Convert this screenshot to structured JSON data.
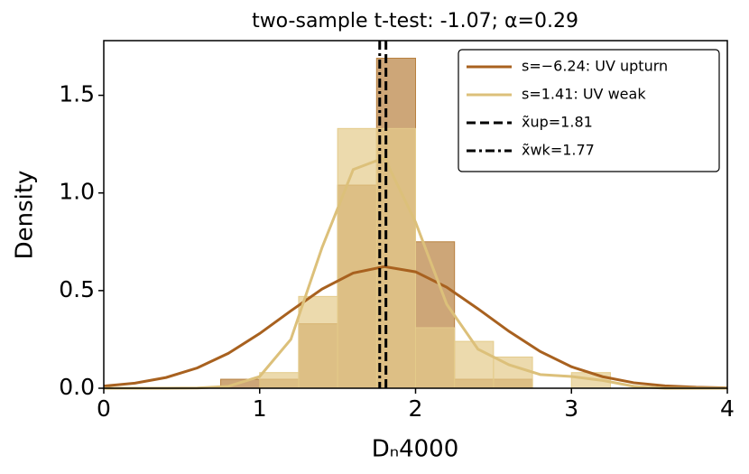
{
  "chart_data": {
    "type": "histogram",
    "title": "two-sample t-test: -1.07; α=0.29",
    "xlabel": "Dₙ4000",
    "ylabel": "Density",
    "xlim": [
      0,
      4
    ],
    "ylim": [
      0,
      1.78
    ],
    "xticks": [
      0,
      1,
      2,
      3,
      4
    ],
    "yticks": [
      {
        "value": 0,
        "label": "0.0"
      },
      0.5,
      {
        "value": 1,
        "label": "1.0"
      },
      1.5
    ],
    "bins": [
      0.75,
      1.0,
      1.25,
      1.5,
      1.75,
      2.0,
      2.25,
      2.5,
      2.75,
      3.0,
      3.25
    ],
    "series": [
      {
        "color": "#b8803f",
        "values": [
          0.046,
          0.046,
          0.33,
          1.04,
          1.69,
          0.75,
          0.046,
          0.046,
          0,
          0
        ]
      },
      {
        "color": "#e4cb8a",
        "values": [
          0,
          0.08,
          0.47,
          1.33,
          1.33,
          0.31,
          0.24,
          0.16,
          0,
          0.08
        ]
      }
    ],
    "curves": [
      {
        "name": "s=−6.24: UV upturn",
        "color": "#a8611f",
        "x": [
          0,
          0.2,
          0.4,
          0.6,
          0.8,
          1.0,
          1.2,
          1.4,
          1.6,
          1.8,
          2.0,
          2.2,
          2.4,
          2.6,
          2.8,
          3.0,
          3.2,
          3.4,
          3.6,
          3.8,
          4.0
        ],
        "values": [
          0.011,
          0.026,
          0.055,
          0.104,
          0.179,
          0.28,
          0.396,
          0.508,
          0.59,
          0.623,
          0.596,
          0.517,
          0.407,
          0.291,
          0.188,
          0.11,
          0.059,
          0.028,
          0.012,
          0.005,
          0.002
        ]
      },
      {
        "name": "s=1.41: UV weak",
        "color": "#dcc07a",
        "x": [
          0,
          0.2,
          0.4,
          0.6,
          0.8,
          1.0,
          1.2,
          1.4,
          1.6,
          1.8,
          2.0,
          2.2,
          2.4,
          2.6,
          2.8,
          3.0,
          3.2,
          3.4,
          3.6,
          3.8,
          4.0
        ],
        "values": [
          0,
          0,
          0,
          0.001,
          0.01,
          0.06,
          0.25,
          0.72,
          1.12,
          1.18,
          0.85,
          0.43,
          0.2,
          0.12,
          0.07,
          0.06,
          0.04,
          0.01,
          0,
          0,
          0
        ]
      }
    ],
    "vlines": [
      {
        "name": "x̃up=1.81",
        "x": 1.81,
        "color": "#000000",
        "dash": "dashed"
      },
      {
        "name": "x̃wk=1.77",
        "x": 1.77,
        "color": "#000000",
        "dash": "dashdot"
      }
    ]
  }
}
